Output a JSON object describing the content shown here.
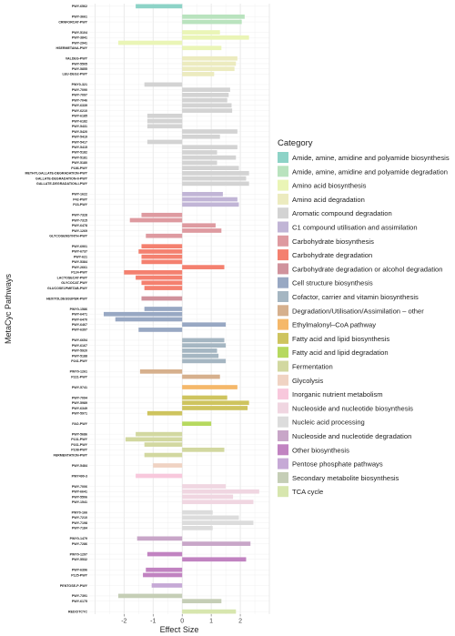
{
  "chart_data": {
    "type": "bar",
    "orientation": "horizontal",
    "xlabel": "Effect Size",
    "ylabel": "MetaCyc Pathways",
    "xlim": [
      -3.2,
      3.0
    ],
    "xticks": [
      -2,
      -1,
      0,
      1,
      2
    ],
    "grid": true,
    "legend_title": "Category",
    "legend_position": "right",
    "categories": [
      {
        "name": "Amide, amine, amidine and polyamide biosynthesis",
        "color": "#8DD3C7"
      },
      {
        "name": "Amide, amine, amidine and polyamide degradation",
        "color": "#B9E3BE"
      },
      {
        "name": "Amino acid biosynthesis",
        "color": "#EAF5B6"
      },
      {
        "name": "Amino acid degradation",
        "color": "#ECEBBF"
      },
      {
        "name": "Aromatic compound degradation",
        "color": "#D3D3D3"
      },
      {
        "name": "C1 compound utilisation and assimilation",
        "color": "#C1B5D6"
      },
      {
        "name": "Carbohydrate biosynthesis",
        "color": "#DE9AA0"
      },
      {
        "name": "Carbohydrate degradation",
        "color": "#F4806F"
      },
      {
        "name": "Carbohydrate degradation or alcohol degradation",
        "color": "#D0929C"
      },
      {
        "name": "Cell structure biosynthesis",
        "color": "#98A8C3"
      },
      {
        "name": "Cofactor, carrier and vitamin biosynthesis",
        "color": "#A5B6C2"
      },
      {
        "name": "Degradation/Utilisation/Assimilation – other",
        "color": "#D6B08D"
      },
      {
        "name": "Ethylmalonyl–CoA pathway",
        "color": "#F5B86A"
      },
      {
        "name": "Fatty acid and lipid biosynthesis",
        "color": "#CEC45E"
      },
      {
        "name": "Fatty acid and lipid degradation",
        "color": "#B6D95F"
      },
      {
        "name": "Fermentation",
        "color": "#D2D8A0"
      },
      {
        "name": "Glycolysis",
        "color": "#F0D3C3"
      },
      {
        "name": "Inorganic nutrient metabolism",
        "color": "#F8C8DC"
      },
      {
        "name": "Nucleoside and nucleotide biosynthesis",
        "color": "#F0D6E1"
      },
      {
        "name": "Nucleic acid processing",
        "color": "#DCDCDC"
      },
      {
        "name": "Nucleoside and nucleotide degradation",
        "color": "#C8A6C8"
      },
      {
        "name": "Other biosynthesis",
        "color": "#C183C1"
      },
      {
        "name": "Pentose phosphate pathways",
        "color": "#C6A9D6"
      },
      {
        "name": "Secondary metabolite biosynthesis",
        "color": "#C5CEB6"
      },
      {
        "name": "TCA cycle",
        "color": "#D7E6AE"
      }
    ],
    "groups": [
      {
        "category": 0,
        "rows": [
          [
            "PWY-6562",
            -1.6
          ]
        ]
      },
      {
        "category": 1,
        "rows": [
          [
            "PWY-3661",
            2.15
          ],
          [
            "CRNFORCAT-PWY",
            2.05
          ]
        ]
      },
      {
        "category": 2,
        "rows": [
          [
            "PWY-5104",
            1.3
          ],
          [
            "PWY-3841",
            2.3
          ],
          [
            "PWY-2941",
            -2.2
          ],
          [
            "HSERMETANA-PWY",
            1.35
          ]
        ]
      },
      {
        "category": 3,
        "rows": [
          [
            "VALDEG-PWY",
            1.9
          ],
          [
            "PWY-5505",
            1.85
          ],
          [
            "PWY-5855",
            1.8
          ],
          [
            "LEU-DEG2-PWY",
            1.1
          ]
        ]
      },
      {
        "category": 4,
        "rows": [
          [
            "PWY0-321",
            -1.3
          ],
          [
            "PWY-7090",
            1.65
          ],
          [
            "PWY-7097",
            1.6
          ],
          [
            "PWY-7046",
            1.55
          ],
          [
            "PWY-6339",
            1.7
          ],
          [
            "PWY-6210",
            1.72
          ],
          [
            "PWY-6185",
            -1.2
          ],
          [
            "PWY-6182",
            -1.2
          ],
          [
            "PWY-5431",
            -1.2
          ],
          [
            "PWY-5420",
            1.9
          ],
          [
            "PWY-5419",
            1.3
          ],
          [
            "PWY-5417",
            -1.2
          ],
          [
            "PWY-5415",
            1.9
          ],
          [
            "PWY-5182",
            1.2
          ],
          [
            "PWY-5181",
            1.85
          ],
          [
            "PWY-5180",
            1.2
          ],
          [
            "P186-PWY",
            1.95
          ],
          [
            "METHYLGALLATE-DEGRADATION-PWY",
            2.3
          ],
          [
            "GALLATE-DEGRADATION-II-PWY",
            2.2
          ],
          [
            "GALLATE-DEGRADATION-I-PWY",
            2.3
          ]
        ]
      },
      {
        "category": 5,
        "rows": [
          [
            "PWY-1622",
            1.4
          ],
          [
            "P42-PWY",
            1.9
          ],
          [
            "P23-PWY",
            1.95
          ]
        ]
      },
      {
        "category": 6,
        "rows": [
          [
            "PWY-7328",
            -1.4
          ],
          [
            "PWY-7315",
            -1.8
          ],
          [
            "PWY-6478",
            1.15
          ],
          [
            "PWY-1269",
            1.35
          ],
          [
            "GLYCOGENSYNTH-PWY",
            -1.25
          ]
        ]
      },
      {
        "category": 7,
        "rows": [
          [
            "PWY-6901",
            -1.4
          ],
          [
            "PWY-6737",
            -1.5
          ],
          [
            "PWY-621",
            -1.4
          ],
          [
            "PWY-5384",
            -1.4
          ],
          [
            "PWY-2661",
            1.45
          ],
          [
            "P124-PWY",
            -2.0
          ],
          [
            "LACTOSECAT-PWY",
            -1.6
          ],
          [
            "GLYCOCAT-PWY",
            -1.4
          ],
          [
            "GLUCOSE1PMETAB-PWY",
            -1.3
          ]
        ]
      },
      {
        "category": 8,
        "rows": [
          [
            "HEXITOLDEGSUPER-PWY",
            -1.4
          ]
        ]
      },
      {
        "category": 9,
        "rows": [
          [
            "PWY0-1586",
            -1.3
          ],
          [
            "PWY-6471",
            -2.7
          ],
          [
            "PWY-6470",
            -2.3
          ],
          [
            "PWY-6467",
            1.5
          ],
          [
            "PWY-6397",
            -1.5
          ]
        ]
      },
      {
        "category": 10,
        "rows": [
          [
            "PWY-6654",
            1.45
          ],
          [
            "PWY-6167",
            1.5
          ],
          [
            "PWY-5920",
            1.2
          ],
          [
            "PWY-5188",
            1.25
          ],
          [
            "P241-PWY",
            1.5
          ]
        ]
      },
      {
        "category": 11,
        "rows": [
          [
            "PWY0-1261",
            -1.45
          ],
          [
            "P221-PWY",
            1.3
          ]
        ]
      },
      {
        "category": 12,
        "rows": [
          [
            "PWY-5741",
            1.9
          ]
        ]
      },
      {
        "category": 13,
        "rows": [
          [
            "PWY-7094",
            1.55
          ],
          [
            "PWY-5989",
            2.3
          ],
          [
            "PWY-6349",
            2.25
          ],
          [
            "PWY-5971",
            -1.2
          ]
        ]
      },
      {
        "category": 14,
        "rows": [
          [
            "FAO-PWY",
            1.0
          ]
        ]
      },
      {
        "category": 15,
        "rows": [
          [
            "PWY-5686",
            -1.6
          ],
          [
            "P131-PWY",
            -1.95
          ],
          [
            "P161-PWY",
            -1.3
          ],
          [
            "P108-PWY",
            1.45
          ],
          [
            "FERMENTATION-PWY",
            -1.3
          ]
        ]
      },
      {
        "category": 16,
        "rows": [
          [
            "PWY-5484",
            -1.0
          ]
        ]
      },
      {
        "category": 17,
        "rows": [
          [
            "PWY490-3",
            -1.6
          ]
        ]
      },
      {
        "category": 18,
        "rows": [
          [
            "PWY-7006",
            1.5
          ],
          [
            "PWY-6641",
            2.65
          ],
          [
            "PWY-5506",
            1.75
          ],
          [
            "PWY-1541",
            2.45
          ]
        ]
      },
      {
        "category": 19,
        "rows": [
          [
            "PWY0-166",
            1.05
          ],
          [
            "PWY-7210",
            1.95
          ],
          [
            "PWY-7198",
            2.45
          ],
          [
            "PWY-7184",
            1.05
          ]
        ]
      },
      {
        "category": 20,
        "rows": [
          [
            "PWY0-1479",
            -1.55
          ],
          [
            "PWY-7286",
            2.35
          ]
        ]
      },
      {
        "category": 21,
        "rows": [
          [
            "PWY0-1297",
            -1.2
          ],
          [
            "PWY-5532",
            2.2
          ]
        ]
      },
      {
        "category": 21,
        "rows": [
          [
            "PWY-6396",
            -1.25
          ],
          [
            "P125-PWY",
            -1.35
          ]
        ]
      },
      {
        "category": 22,
        "rows": [
          [
            "PENTOSE-P-PWY",
            -1.05
          ]
        ]
      },
      {
        "category": 23,
        "rows": [
          [
            "PWY-7391",
            -2.2
          ],
          [
            "PWY-6175",
            1.35
          ]
        ]
      },
      {
        "category": 24,
        "rows": [
          [
            "REDCITCYC",
            1.85
          ]
        ]
      }
    ]
  }
}
